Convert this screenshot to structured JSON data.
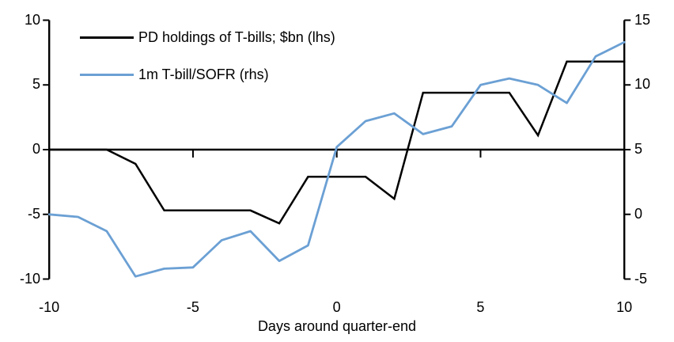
{
  "chart_data": {
    "type": "line",
    "title": "",
    "xlabel": "Days around quarter-end",
    "grid": false,
    "legend_position": "top-left-inside",
    "x": [
      -10,
      -9,
      -8,
      -7,
      -6,
      -5,
      -4,
      -3,
      -2,
      -1,
      0,
      1,
      2,
      3,
      4,
      5,
      6,
      7,
      8,
      9,
      10
    ],
    "series": [
      {
        "name": "PD holdings of T-bills; $bn (lhs)",
        "axis": "left",
        "color": "#000000",
        "values": [
          0,
          0,
          0,
          -1.1,
          -4.7,
          -4.7,
          -4.7,
          -4.7,
          -5.7,
          -2.1,
          -2.1,
          -2.1,
          -3.8,
          4.4,
          4.4,
          4.4,
          4.4,
          1.1,
          6.8,
          6.8,
          6.8
        ]
      },
      {
        "name": "1m T-bill/SOFR (rhs)",
        "axis": "right",
        "color": "#6BA0D4",
        "values": [
          0,
          -0.2,
          -1.3,
          -4.8,
          -4.2,
          -4.1,
          -2.0,
          -1.3,
          -3.6,
          -2.4,
          5.2,
          7.2,
          7.8,
          6.2,
          6.8,
          10.0,
          10.5,
          10.0,
          8.6,
          12.2,
          13.3
        ]
      }
    ],
    "axes": {
      "x": {
        "range": [
          -10,
          10
        ],
        "ticks": [
          -10,
          -5,
          0,
          5,
          10
        ],
        "title": "Days around quarter-end"
      },
      "left": {
        "range": [
          -10,
          10
        ],
        "ticks": [
          10,
          5,
          0,
          -5,
          -10
        ]
      },
      "right": {
        "range": [
          -5,
          15
        ],
        "ticks": [
          15,
          10,
          5,
          0,
          -5
        ]
      }
    },
    "axis_color": "#000000",
    "background": "#ffffff"
  }
}
